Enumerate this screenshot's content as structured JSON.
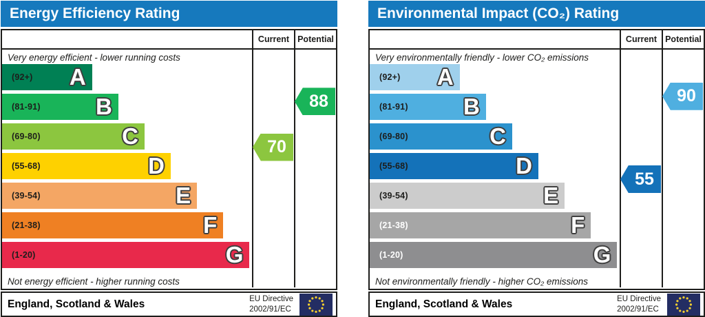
{
  "chart_data": [
    {
      "type": "rating-bar",
      "title": "Energy Efficiency Rating",
      "title_bg": "#1679bd",
      "column_headers": [
        "Current",
        "Potential"
      ],
      "top_caption": "Very energy efficient - lower running costs",
      "bottom_caption": "Not energy efficient - higher running costs",
      "bands": [
        {
          "letter": "A",
          "range_label": "(92+)",
          "range": [
            92,
            100
          ],
          "color": "#008054",
          "width_pct": 36,
          "label_color": "#1d1d1b"
        },
        {
          "letter": "B",
          "range_label": "(81-91)",
          "range": [
            81,
            91
          ],
          "color": "#19b459",
          "width_pct": 46.5,
          "label_color": "#1d1d1b"
        },
        {
          "letter": "C",
          "range_label": "(69-80)",
          "range": [
            69,
            80
          ],
          "color": "#8cc63f",
          "width_pct": 57,
          "label_color": "#1d1d1b"
        },
        {
          "letter": "D",
          "range_label": "(55-68)",
          "range": [
            55,
            68
          ],
          "color": "#fed100",
          "width_pct": 67.5,
          "label_color": "#1d1d1b"
        },
        {
          "letter": "E",
          "range_label": "(39-54)",
          "range": [
            39,
            54
          ],
          "color": "#f4a664",
          "width_pct": 78,
          "label_color": "#1d1d1b"
        },
        {
          "letter": "F",
          "range_label": "(21-38)",
          "range": [
            21,
            38
          ],
          "color": "#ef8023",
          "width_pct": 88.5,
          "label_color": "#1d1d1b"
        },
        {
          "letter": "G",
          "range_label": "(1-20)",
          "range": [
            1,
            20
          ],
          "color": "#e8294b",
          "width_pct": 99,
          "label_color": "#1d1d1b"
        }
      ],
      "current": 70,
      "current_color": "#8cc63f",
      "potential": 88,
      "potential_color": "#19b459",
      "footer": {
        "region": "England, Scotland & Wales",
        "directive": [
          "EU Directive",
          "2002/91/EC"
        ]
      }
    },
    {
      "type": "rating-bar",
      "title": "Environmental Impact (CO₂) Rating",
      "title_bg": "#1679bd",
      "column_headers": [
        "Current",
        "Potential"
      ],
      "top_caption": "Very environmentally friendly - lower CO₂ emissions",
      "bottom_caption": "Not environmentally friendly - higher CO₂ emissions",
      "bands": [
        {
          "letter": "A",
          "range_label": "(92+)",
          "range": [
            92,
            100
          ],
          "color": "#9fd0ec",
          "width_pct": 36,
          "label_color": "#1d1d1b"
        },
        {
          "letter": "B",
          "range_label": "(81-91)",
          "range": [
            81,
            91
          ],
          "color": "#4fafe0",
          "width_pct": 46.5,
          "label_color": "#1d1d1b"
        },
        {
          "letter": "C",
          "range_label": "(69-80)",
          "range": [
            69,
            80
          ],
          "color": "#2b92cd",
          "width_pct": 57,
          "label_color": "#1d1d1b"
        },
        {
          "letter": "D",
          "range_label": "(55-68)",
          "range": [
            55,
            68
          ],
          "color": "#1472b9",
          "width_pct": 67.5,
          "label_color": "#1d1d1b"
        },
        {
          "letter": "E",
          "range_label": "(39-54)",
          "range": [
            39,
            54
          ],
          "color": "#cccccc",
          "width_pct": 78,
          "label_color": "#1d1d1b"
        },
        {
          "letter": "F",
          "range_label": "(21-38)",
          "range": [
            21,
            38
          ],
          "color": "#a6a6a6",
          "width_pct": 88.5,
          "label_color": "#ffffff"
        },
        {
          "letter": "G",
          "range_label": "(1-20)",
          "range": [
            1,
            20
          ],
          "color": "#8e8e90",
          "width_pct": 99,
          "label_color": "#ffffff"
        }
      ],
      "current": 55,
      "current_color": "#1472b9",
      "potential": 90,
      "potential_color": "#4fafe0",
      "footer": {
        "region": "England, Scotland & Wales",
        "directive": [
          "EU Directive",
          "2002/91/EC"
        ]
      }
    }
  ],
  "eu_flag": {
    "background": "#232d63",
    "stars": "#f8d12e"
  }
}
